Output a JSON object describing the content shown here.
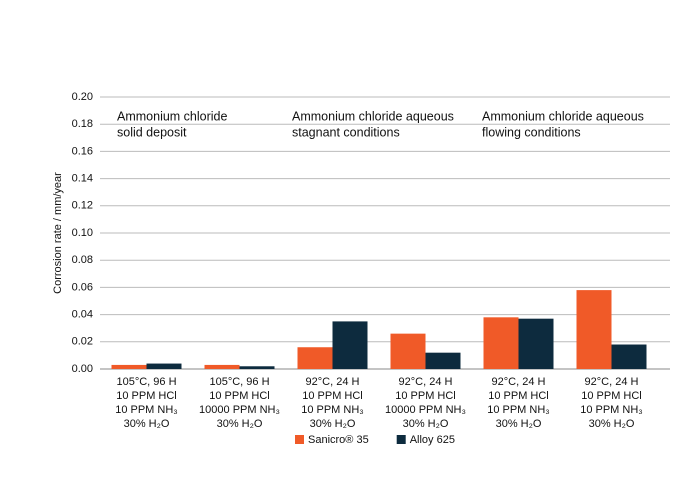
{
  "chart_data": {
    "type": "bar",
    "y_label": "Corrosion rate / mm/year",
    "annotations": [
      [
        "Ammonium chloride",
        "solid deposit"
      ],
      [
        "Ammonium chloride  aqueous",
        "stagnant conditions"
      ],
      [
        "Ammonium chloride  aqueous",
        "flowing conditions"
      ]
    ],
    "categories": [
      [
        "105°C, 96 H",
        "10 PPM HCl",
        "10 PPM NH₃",
        "30% H₂O"
      ],
      [
        "105°C, 96 H",
        "10 PPM HCl",
        "10000 PPM NH₃",
        "30% H₂O"
      ],
      [
        "92°C, 24 H",
        "10 PPM HCl",
        "10 PPM NH₃",
        "30% H₂O"
      ],
      [
        "92°C, 24 H",
        "10 PPM HCl",
        "10000 PPM NH₃",
        "30% H₂O"
      ],
      [
        "92°C, 24 H",
        "10 PPM HCl",
        "10 PPM NH₃",
        "30% H₂O"
      ],
      [
        "92°C, 24 H",
        "10 PPM HCl",
        "10 PPM NH₃",
        "30% H₂O"
      ]
    ],
    "series": [
      {
        "name": "Sanicro® 35",
        "color": "#f05a28",
        "values": [
          0.003,
          0.003,
          0.016,
          0.026,
          0.038,
          0.058
        ]
      },
      {
        "name": "Alloy 625",
        "color": "#0d2b3e",
        "values": [
          0.004,
          0.002,
          0.035,
          0.012,
          0.037,
          0.018
        ]
      }
    ],
    "ylim": [
      0,
      0.2
    ],
    "yticks": [
      {
        "value": 0,
        "label": "0.00"
      },
      {
        "value": 0.02,
        "label": "0.02"
      },
      {
        "value": 0.04,
        "label": "0.04"
      },
      {
        "value": 0.06,
        "label": "0.06"
      },
      {
        "value": 0.08,
        "label": "0.08"
      },
      {
        "value": 0.1,
        "label": "0.10"
      },
      {
        "value": 0.12,
        "label": "0.12"
      },
      {
        "value": 0.14,
        "label": "0.14"
      },
      {
        "value": 0.16,
        "label": "0.16"
      },
      {
        "value": 0.18,
        "label": "0.18"
      },
      {
        "value": 0.2,
        "label": "0.20"
      }
    ],
    "grid": true
  }
}
